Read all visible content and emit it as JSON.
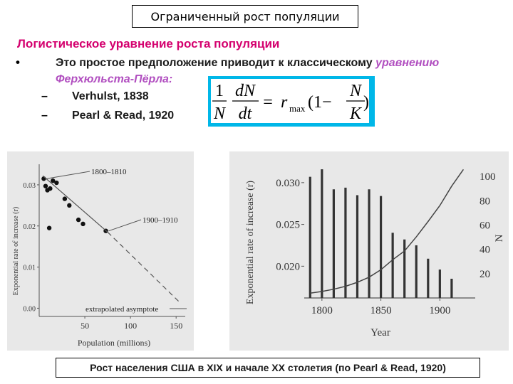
{
  "slide": {
    "title": "Ограниченный рост популяции",
    "heading": "Логистическое уравнение роста популяции",
    "bullet": "•",
    "bullet_text_plain": "Это простое предположение приводит к классическому",
    "bullet_text_highlight": "уравнению",
    "bullet_text_cont": "Ферхюльста-Пёрла:",
    "dash": "–",
    "sub_items": [
      "Verhulst, 1838",
      "Pearl & Read, 1920"
    ],
    "caption": "Рост населения США в XIX и начале XX столетия (по Pearl & Read, 1920)"
  },
  "equation": {
    "lhs_num": "1",
    "lhs_den": "N",
    "d_num": "dN",
    "d_den": "dt",
    "eq": "=",
    "r": "r",
    "r_sub": "max",
    "lparen": "(1−",
    "frac2_num": "N",
    "frac2_den": "K",
    "rparen": ")"
  },
  "chart_data": [
    {
      "type": "scatter",
      "ylabel": "Exponential rate of increase (r)",
      "xlabel": "Population (millions)",
      "y_ticks": [
        "0.03",
        "0.02",
        "0.01",
        "0.00"
      ],
      "x_ticks": [
        "50",
        "100",
        "150"
      ],
      "xlim": [
        0,
        160
      ],
      "ylim": [
        -0.002,
        0.035
      ],
      "points": [
        {
          "x": 5,
          "y": 0.0315
        },
        {
          "x": 7,
          "y": 0.0297
        },
        {
          "x": 9,
          "y": 0.0287
        },
        {
          "x": 12,
          "y": 0.0291
        },
        {
          "x": 15,
          "y": 0.031
        },
        {
          "x": 19,
          "y": 0.0305
        },
        {
          "x": 28,
          "y": 0.0266
        },
        {
          "x": 33,
          "y": 0.025
        },
        {
          "x": 11,
          "y": 0.0195
        },
        {
          "x": 43,
          "y": 0.0215
        },
        {
          "x": 48,
          "y": 0.0205
        },
        {
          "x": 73,
          "y": 0.0188
        }
      ],
      "annotations": [
        "1800–1810",
        "1900–1910",
        "extrapolated asymptote"
      ]
    },
    {
      "type": "bar",
      "ylabel": "Exponential rate of increase (r)",
      "y2label": "N",
      "xlabel": "Year",
      "y_ticks": [
        "0.030",
        "0.025",
        "0.020"
      ],
      "y2_ticks": [
        "100",
        "80",
        "60",
        "40",
        "20"
      ],
      "x_ticks": [
        "1800",
        "1850",
        "1900"
      ],
      "xlim": [
        1785,
        1930
      ],
      "ylim": [
        0.0162,
        0.0322
      ],
      "y2lim": [
        0,
        110
      ],
      "bars": [
        {
          "x": 1790,
          "y": 0.0307
        },
        {
          "x": 1800,
          "y": 0.0316
        },
        {
          "x": 1810,
          "y": 0.0292
        },
        {
          "x": 1820,
          "y": 0.0294
        },
        {
          "x": 1830,
          "y": 0.0285
        },
        {
          "x": 1840,
          "y": 0.0292
        },
        {
          "x": 1850,
          "y": 0.0284
        },
        {
          "x": 1860,
          "y": 0.024
        },
        {
          "x": 1870,
          "y": 0.0232
        },
        {
          "x": 1880,
          "y": 0.0225
        },
        {
          "x": 1890,
          "y": 0.0209
        },
        {
          "x": 1900,
          "y": 0.0196
        },
        {
          "x": 1910,
          "y": 0.0185
        }
      ],
      "curve_N": [
        {
          "x": 1790,
          "y": 4
        },
        {
          "x": 1800,
          "y": 5.3
        },
        {
          "x": 1810,
          "y": 7.2
        },
        {
          "x": 1820,
          "y": 9.6
        },
        {
          "x": 1830,
          "y": 12.9
        },
        {
          "x": 1840,
          "y": 17.1
        },
        {
          "x": 1850,
          "y": 23.2
        },
        {
          "x": 1860,
          "y": 31.4
        },
        {
          "x": 1870,
          "y": 38.6
        },
        {
          "x": 1880,
          "y": 50.2
        },
        {
          "x": 1890,
          "y": 62.9
        },
        {
          "x": 1900,
          "y": 76.0
        },
        {
          "x": 1910,
          "y": 92.0
        },
        {
          "x": 1920,
          "y": 105.7
        }
      ]
    }
  ]
}
